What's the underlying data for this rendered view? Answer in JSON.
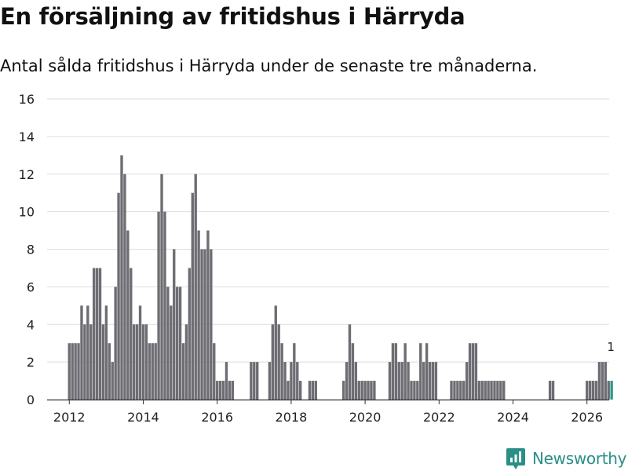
{
  "title": "En försäljning av fritidshus i Härryda",
  "subtitle": "Antal sålda fritidshus i Härryda under de senaste tre månaderna.",
  "brand": {
    "name": "Newsworthy",
    "icon": "newsworthy-logo-icon",
    "color": "#2a8f86"
  },
  "chart_data": {
    "type": "bar",
    "title": "En försäljning av fritidshus i Härryda",
    "subtitle": "Antal sålda fritidshus i Härryda under de senaste tre månaderna.",
    "xlabel": "",
    "ylabel": "",
    "x_unit": "year (monthly bars)",
    "xlim": [
      2011.4,
      2026.6
    ],
    "ylim": [
      0,
      16
    ],
    "yticks": [
      0,
      2,
      4,
      6,
      8,
      10,
      12,
      14,
      16
    ],
    "xticks": [
      2012,
      2014,
      2016,
      2018,
      2020,
      2022,
      2024,
      2026
    ],
    "grid": true,
    "bar_color": "#6e6d73",
    "highlight_color": "#2a9a8e",
    "start": "2012-01",
    "values": [
      3,
      3,
      3,
      3,
      5,
      4,
      5,
      4,
      7,
      7,
      7,
      4,
      5,
      3,
      2,
      6,
      11,
      13,
      12,
      9,
      7,
      4,
      4,
      5,
      4,
      4,
      3,
      3,
      3,
      10,
      12,
      10,
      6,
      5,
      8,
      6,
      6,
      3,
      4,
      7,
      11,
      12,
      9,
      8,
      8,
      9,
      8,
      3,
      1,
      1,
      1,
      2,
      1,
      1,
      0,
      0,
      0,
      0,
      0,
      2,
      2,
      2,
      0,
      0,
      0,
      2,
      4,
      5,
      4,
      3,
      2,
      1,
      2,
      3,
      2,
      1,
      0,
      0,
      1,
      1,
      1,
      0,
      0,
      0,
      0,
      0,
      0,
      0,
      0,
      1,
      2,
      4,
      3,
      2,
      1,
      1,
      1,
      1,
      1,
      1,
      0,
      0,
      0,
      0,
      2,
      3,
      3,
      2,
      2,
      3,
      2,
      1,
      1,
      1,
      3,
      2,
      3,
      2,
      2,
      2,
      0,
      0,
      0,
      0,
      1,
      1,
      1,
      1,
      1,
      2,
      3,
      3,
      3,
      1,
      1,
      1,
      1,
      1,
      1,
      1,
      1,
      1,
      0,
      0,
      0,
      0,
      0,
      0,
      0,
      0,
      0,
      0,
      0,
      0,
      0,
      0,
      1,
      1,
      0,
      0,
      0,
      0,
      0,
      0,
      0,
      0,
      0,
      0,
      1,
      1,
      1,
      1,
      2,
      2,
      2,
      1,
      1
    ],
    "last_value_label": "1"
  }
}
